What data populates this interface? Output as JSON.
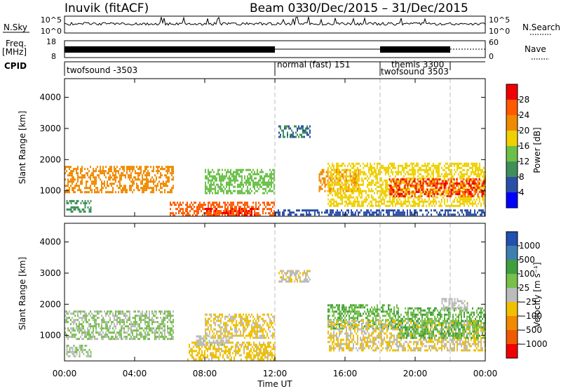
{
  "header": {
    "station": "Inuvik  (fitACF)",
    "beam": "Beam 03",
    "date_range": "30/Dec/2015 – 31/Dec/2015"
  },
  "time_axis": {
    "label": "Time UT",
    "ticks": [
      "00:00",
      "04:00",
      "08:00",
      "12:00",
      "16:00",
      "20:00",
      "00:00"
    ],
    "tick_hours": [
      0,
      4,
      8,
      12,
      16,
      20,
      24
    ],
    "range_hours": [
      0,
      24
    ]
  },
  "status_panels": {
    "nsky": {
      "label": "N.Sky",
      "top_tick": "10^5",
      "bottom_tick": "10^0"
    },
    "nsearch": {
      "label": "N.Search",
      "top_tick": "10^5",
      "bottom_tick": "10^0"
    },
    "freq": {
      "label": "Freq.",
      "unit": "[MHz]",
      "top_tick": "18",
      "bottom_tick": "8"
    },
    "nave": {
      "label": "Nave",
      "top_tick": "60",
      "bottom_tick": "0"
    },
    "cpid": {
      "label": "CPID",
      "entries": [
        {
          "text": "twofsound -3503",
          "start_hour": 0
        },
        {
          "text": "normal (fast) 151",
          "start_hour": 12
        },
        {
          "text": "themis 3300",
          "start_hour": 18
        },
        {
          "text": "twofsound 3503",
          "start_hour": 18
        }
      ],
      "boundary_hours": [
        12,
        18,
        22
      ]
    }
  },
  "colors": {
    "power": [
      "#0000ff",
      "#2a4fa8",
      "#3f8f5a",
      "#6cc04a",
      "#f0d000",
      "#f08a00",
      "#ff5a00",
      "#f00000"
    ],
    "velocity": [
      "#f00000",
      "#f05a00",
      "#f08a00",
      "#f0c000",
      "#bbbbbb",
      "#77c04a",
      "#3f9f3f",
      "#3f7faf",
      "#2050b0"
    ]
  },
  "chart_data": [
    {
      "type": "heatmap",
      "title": "",
      "xlabel": "",
      "ylabel": "Slant Range [km]",
      "xlim": [
        0,
        24
      ],
      "ylim": [
        180,
        4600
      ],
      "yticks": [
        "1000",
        "2000",
        "3000",
        "4000"
      ],
      "ytick_values": [
        1000,
        2000,
        3000,
        4000
      ],
      "colorbar": {
        "label": "Power [dB]",
        "tick_labels": [
          "4",
          "8",
          "12",
          "16",
          "20",
          "24",
          "28"
        ],
        "range": [
          0,
          32
        ]
      },
      "regions": [
        {
          "x": [
            0,
            6.2
          ],
          "y": [
            950,
            1800
          ],
          "value": 22
        },
        {
          "x": [
            0.1,
            1.5
          ],
          "y": [
            350,
            700
          ],
          "value": 10
        },
        {
          "x": [
            6,
            12
          ],
          "y": [
            200,
            650
          ],
          "value": 26
        },
        {
          "x": [
            8,
            11
          ],
          "y": [
            200,
            450
          ],
          "value": 28
        },
        {
          "x": [
            8,
            12
          ],
          "y": [
            950,
            1700
          ],
          "value": 14
        },
        {
          "x": [
            12,
            24
          ],
          "y": [
            200,
            400
          ],
          "value": 6
        },
        {
          "x": [
            14.5,
            16.8
          ],
          "y": [
            1000,
            1700
          ],
          "value": 22
        },
        {
          "x": [
            15,
            24
          ],
          "y": [
            500,
            1900
          ],
          "value": 18
        },
        {
          "x": [
            18.5,
            24
          ],
          "y": [
            800,
            1400
          ],
          "value": 28
        },
        {
          "x": [
            12.2,
            14
          ],
          "y": [
            2700,
            3100
          ],
          "value": 8
        }
      ]
    },
    {
      "type": "heatmap",
      "title": "",
      "xlabel": "Time UT",
      "ylabel": "Slant Range [km]",
      "xlim": [
        0,
        24
      ],
      "ylim": [
        180,
        4600
      ],
      "yticks": [
        "1000",
        "2000",
        "3000",
        "4000"
      ],
      "ytick_values": [
        1000,
        2000,
        3000,
        4000
      ],
      "colorbar": {
        "label": "Velocity [m s⁻¹]",
        "tick_labels": [
          "1000",
          "500",
          "100",
          "25",
          "−25",
          "−100",
          "−500",
          "−1000"
        ],
        "range": [
          -1000,
          1000
        ]
      },
      "regions": [
        {
          "x": [
            0,
            6.2
          ],
          "y": [
            900,
            1800
          ],
          "value": -120
        },
        {
          "x": [
            0.1,
            1.5
          ],
          "y": [
            350,
            700
          ],
          "value": -80
        },
        {
          "x": [
            7,
            12
          ],
          "y": [
            200,
            800
          ],
          "value": 200
        },
        {
          "x": [
            7.5,
            9.5
          ],
          "y": [
            700,
            1000
          ],
          "value": 0
        },
        {
          "x": [
            8,
            12
          ],
          "y": [
            950,
            1700
          ],
          "value": 150
        },
        {
          "x": [
            15,
            19
          ],
          "y": [
            1200,
            2000
          ],
          "value": -300
        },
        {
          "x": [
            15,
            24
          ],
          "y": [
            500,
            1500
          ],
          "value": 120
        },
        {
          "x": [
            19,
            24
          ],
          "y": [
            900,
            1900
          ],
          "value": -300
        },
        {
          "x": [
            21.5,
            23
          ],
          "y": [
            1800,
            2200
          ],
          "value": 0
        },
        {
          "x": [
            12.2,
            14
          ],
          "y": [
            2700,
            3100
          ],
          "value": 80
        }
      ]
    }
  ]
}
